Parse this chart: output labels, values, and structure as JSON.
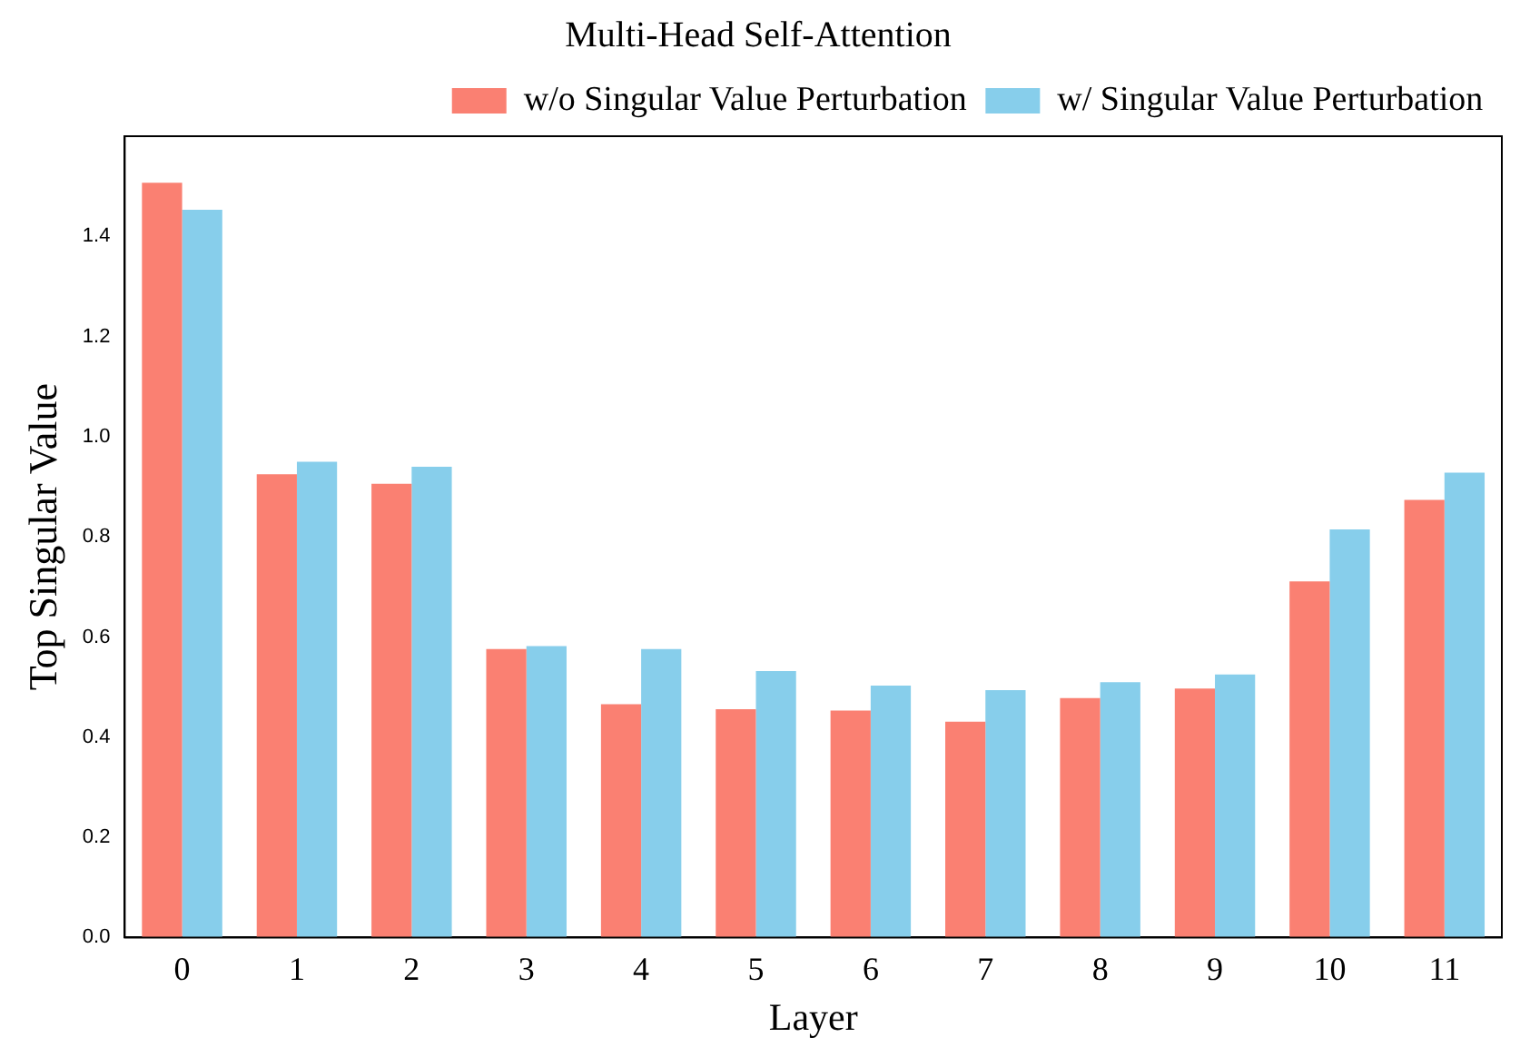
{
  "chart_data": {
    "type": "bar",
    "title": "Multi-Head Self-Attention",
    "xlabel": "Layer",
    "ylabel": "Top Singular Value",
    "categories": [
      "0",
      "1",
      "2",
      "3",
      "4",
      "5",
      "6",
      "7",
      "8",
      "9",
      "10",
      "11"
    ],
    "series": [
      {
        "name": "w/o Singular Value Perturbation",
        "color": "#fa8072",
        "values": [
          1.507,
          0.925,
          0.906,
          0.576,
          0.466,
          0.456,
          0.453,
          0.431,
          0.478,
          0.497,
          0.711,
          0.874
        ]
      },
      {
        "name": "w/ Singular Value Perturbation",
        "color": "#87ceeb",
        "values": [
          1.453,
          0.95,
          0.94,
          0.582,
          0.576,
          0.532,
          0.503,
          0.494,
          0.51,
          0.525,
          0.815,
          0.928
        ]
      }
    ],
    "ylim": [
      0,
      1.6
    ],
    "yticks": [
      {
        "value": 0,
        "label": "0.0"
      },
      {
        "value": 0.2,
        "label": "0.2"
      },
      {
        "value": 0.4,
        "label": "0.4"
      },
      {
        "value": 0.6,
        "label": "0.6"
      },
      {
        "value": 0.8,
        "label": "0.8"
      },
      {
        "value": 1,
        "label": "1.0"
      },
      {
        "value": 1.2,
        "label": "1.2"
      },
      {
        "value": 1.4,
        "label": "1.4"
      }
    ],
    "grid": false,
    "legend": "top right"
  }
}
